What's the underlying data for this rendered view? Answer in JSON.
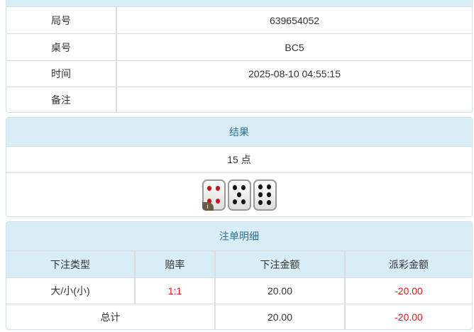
{
  "info": {
    "rows": [
      {
        "label": "局号",
        "value": "639654052"
      },
      {
        "label": "桌号",
        "value": "BC5"
      },
      {
        "label": "时间",
        "value": "2025-08-10 04:55:15"
      },
      {
        "label": "备注",
        "value": ""
      }
    ]
  },
  "result": {
    "title": "结果",
    "points": "15 点",
    "dice": [
      4,
      5,
      6
    ],
    "badge": "i"
  },
  "bets": {
    "title": "注单明细",
    "headers": [
      "下注类型",
      "赔率",
      "下注金额",
      "派彩金额"
    ],
    "rows": [
      {
        "type": "大/小(小)",
        "odds": "1:1",
        "amount": "20.00",
        "payout": "-20.00"
      }
    ],
    "total": {
      "label": "总计",
      "amount": "20.00",
      "payout": "-20.00"
    }
  },
  "colors": {
    "header_bg": "#d9edf7",
    "header_text": "#31708f",
    "negative": "#e0191b"
  }
}
